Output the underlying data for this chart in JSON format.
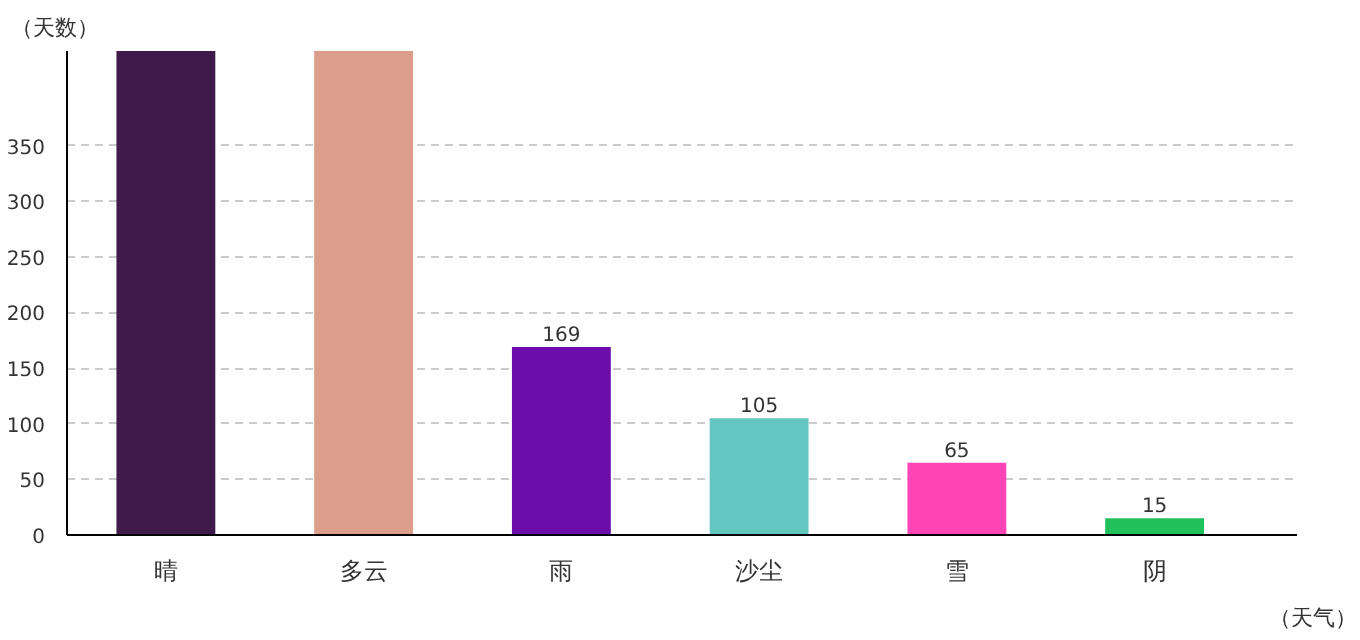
{
  "chart_data": {
    "type": "bar",
    "xlabel": "（天气）",
    "ylabel": "（天数）",
    "categories": [
      "晴",
      "多云",
      "雨",
      "沙尘",
      "雪",
      "阴"
    ],
    "values": [
      435,
      435,
      169,
      105,
      65,
      15
    ],
    "value_labels": [
      null,
      null,
      "169",
      "105",
      "65",
      "15"
    ],
    "colors": [
      "#3f1a4a",
      "#dc9e8a",
      "#6a0dab",
      "#63c6c0",
      "#ff45b5",
      "#20c05a"
    ],
    "ylim": [
      0,
      435
    ],
    "yticks": [
      0,
      50,
      100,
      150,
      200,
      250,
      300,
      350
    ],
    "grid": "y"
  }
}
